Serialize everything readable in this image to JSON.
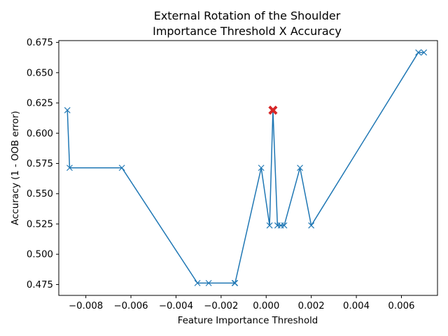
{
  "chart_data": {
    "type": "line",
    "title": "External Rotation of the Shoulder",
    "subtitle": "Importance Threshold X Accuracy",
    "xlabel": "Feature Importance Threshold",
    "ylabel": "Accuracy (1 - OOB error)",
    "xlim": [
      -0.0092,
      0.0076
    ],
    "ylim": [
      0.466,
      0.6765
    ],
    "xticks": [
      -0.008,
      -0.006,
      -0.004,
      -0.002,
      0.0,
      0.002,
      0.004,
      0.006
    ],
    "xtick_labels": [
      "−0.008",
      "−0.006",
      "−0.004",
      "−0.002",
      "0.000",
      "0.002",
      "0.004",
      "0.006"
    ],
    "yticks": [
      0.475,
      0.5,
      0.525,
      0.55,
      0.575,
      0.6,
      0.625,
      0.65,
      0.675
    ],
    "ytick_labels": [
      "0.475",
      "0.500",
      "0.525",
      "0.550",
      "0.575",
      "0.600",
      "0.625",
      "0.650",
      "0.675"
    ],
    "grid": false,
    "series": [
      {
        "color": "#1f77b4",
        "marker": "x",
        "x": [
          -0.00882,
          -0.00872,
          -0.0064,
          -0.00305,
          -0.00255,
          -0.0014,
          -0.00138,
          -0.00022,
          0.00015,
          0.0003,
          0.0005,
          0.00065,
          0.0008,
          0.0015,
          0.002,
          0.00675,
          0.007
        ],
        "y": [
          0.619,
          0.5714,
          0.5714,
          0.4762,
          0.4762,
          0.4762,
          0.4762,
          0.5714,
          0.5238,
          0.619,
          0.5238,
          0.5238,
          0.5238,
          0.5714,
          0.5238,
          0.6667,
          0.6667
        ]
      }
    ],
    "highlight": {
      "x": 0.0003,
      "y": 0.619,
      "color": "#d62728",
      "marker": "X"
    }
  }
}
